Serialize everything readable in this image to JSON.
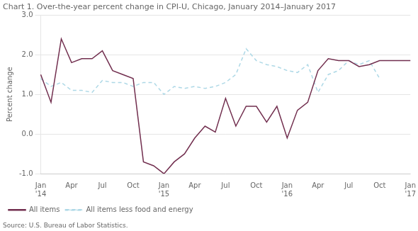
{
  "chart_data": {
    "type": "line",
    "title": "Chart 1. Over-the-year percent change in CPI-U, Chicago, January 2014–January 2017",
    "y_label": "Percent change",
    "annotations": [
      "Source: U.S. Bureau of Labor Statistics."
    ],
    "categories": [
      "Jan\n'14",
      null,
      null,
      "Apr",
      null,
      null,
      "Jul",
      null,
      null,
      "Oct",
      null,
      null,
      "Jan\n'15",
      null,
      null,
      "Apr",
      null,
      null,
      "Jul",
      null,
      null,
      "Oct",
      null,
      null,
      "Jan\n'16",
      null,
      null,
      "Apr",
      null,
      null,
      "Jul",
      null,
      null,
      "Oct",
      null,
      null,
      "Jan\n'17"
    ],
    "series": [
      {
        "name": "All items",
        "color": "#722F4F",
        "line_style": "solid",
        "values": [
          1.5,
          0.8,
          2.4,
          1.8,
          1.9,
          1.9,
          2.1,
          1.6,
          1.5,
          1.4,
          -0.7,
          -0.8,
          -1.0,
          -0.7,
          -0.5,
          -0.1,
          0.2,
          0.05,
          0.9,
          0.2,
          0.7,
          0.7,
          0.3,
          0.7,
          -0.1,
          0.6,
          0.8,
          1.6,
          1.9,
          1.85,
          1.85,
          1.7,
          1.75,
          1.85,
          1.85,
          1.85,
          1.85
        ]
      },
      {
        "name": "All items less food and energy",
        "color": "#ADD8E6",
        "line_style": "dashed",
        "values": [
          1.4,
          1.2,
          1.3,
          1.1,
          1.1,
          1.05,
          1.35,
          1.3,
          1.3,
          1.2,
          1.3,
          1.3,
          1.0,
          1.2,
          1.15,
          1.2,
          1.15,
          1.2,
          1.3,
          1.5,
          2.15,
          1.85,
          1.75,
          1.7,
          1.6,
          1.55,
          1.75,
          1.05,
          1.5,
          1.6,
          1.85,
          1.75,
          1.85,
          1.4,
          null,
          null,
          null
        ]
      }
    ],
    "ylim": [
      -1.0,
      3.0
    ],
    "yticks": [
      {
        "value": -1.0,
        "label": "-1.0"
      },
      {
        "value": 0.0,
        "label": "0.0"
      },
      {
        "value": 1.0,
        "label": "1.0"
      },
      {
        "value": 2.0,
        "label": "2.0"
      },
      {
        "value": 3.0,
        "label": "3.0"
      }
    ],
    "grid": "y",
    "legend": "lower left"
  }
}
